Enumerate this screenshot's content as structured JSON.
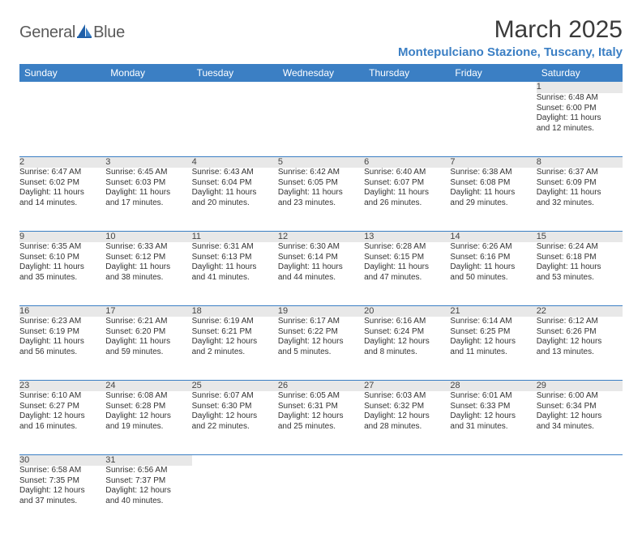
{
  "logo": {
    "part1": "General",
    "part2": "Blue"
  },
  "title": "March 2025",
  "location": "Montepulciano Stazione, Tuscany, Italy",
  "location_color": "#3b7fc4",
  "header_bg": "#3b7fc4",
  "daynum_bg": "#e8e8e8",
  "border_color": "#3b7fc4",
  "weekdays": [
    "Sunday",
    "Monday",
    "Tuesday",
    "Wednesday",
    "Thursday",
    "Friday",
    "Saturday"
  ],
  "first_weekday_index": 6,
  "days": [
    {
      "n": 1,
      "sunrise": "6:48 AM",
      "sunset": "6:00 PM",
      "dl_h": 11,
      "dl_m": 12
    },
    {
      "n": 2,
      "sunrise": "6:47 AM",
      "sunset": "6:02 PM",
      "dl_h": 11,
      "dl_m": 14
    },
    {
      "n": 3,
      "sunrise": "6:45 AM",
      "sunset": "6:03 PM",
      "dl_h": 11,
      "dl_m": 17
    },
    {
      "n": 4,
      "sunrise": "6:43 AM",
      "sunset": "6:04 PM",
      "dl_h": 11,
      "dl_m": 20
    },
    {
      "n": 5,
      "sunrise": "6:42 AM",
      "sunset": "6:05 PM",
      "dl_h": 11,
      "dl_m": 23
    },
    {
      "n": 6,
      "sunrise": "6:40 AM",
      "sunset": "6:07 PM",
      "dl_h": 11,
      "dl_m": 26
    },
    {
      "n": 7,
      "sunrise": "6:38 AM",
      "sunset": "6:08 PM",
      "dl_h": 11,
      "dl_m": 29
    },
    {
      "n": 8,
      "sunrise": "6:37 AM",
      "sunset": "6:09 PM",
      "dl_h": 11,
      "dl_m": 32
    },
    {
      "n": 9,
      "sunrise": "6:35 AM",
      "sunset": "6:10 PM",
      "dl_h": 11,
      "dl_m": 35
    },
    {
      "n": 10,
      "sunrise": "6:33 AM",
      "sunset": "6:12 PM",
      "dl_h": 11,
      "dl_m": 38
    },
    {
      "n": 11,
      "sunrise": "6:31 AM",
      "sunset": "6:13 PM",
      "dl_h": 11,
      "dl_m": 41
    },
    {
      "n": 12,
      "sunrise": "6:30 AM",
      "sunset": "6:14 PM",
      "dl_h": 11,
      "dl_m": 44
    },
    {
      "n": 13,
      "sunrise": "6:28 AM",
      "sunset": "6:15 PM",
      "dl_h": 11,
      "dl_m": 47
    },
    {
      "n": 14,
      "sunrise": "6:26 AM",
      "sunset": "6:16 PM",
      "dl_h": 11,
      "dl_m": 50
    },
    {
      "n": 15,
      "sunrise": "6:24 AM",
      "sunset": "6:18 PM",
      "dl_h": 11,
      "dl_m": 53
    },
    {
      "n": 16,
      "sunrise": "6:23 AM",
      "sunset": "6:19 PM",
      "dl_h": 11,
      "dl_m": 56
    },
    {
      "n": 17,
      "sunrise": "6:21 AM",
      "sunset": "6:20 PM",
      "dl_h": 11,
      "dl_m": 59
    },
    {
      "n": 18,
      "sunrise": "6:19 AM",
      "sunset": "6:21 PM",
      "dl_h": 12,
      "dl_m": 2
    },
    {
      "n": 19,
      "sunrise": "6:17 AM",
      "sunset": "6:22 PM",
      "dl_h": 12,
      "dl_m": 5
    },
    {
      "n": 20,
      "sunrise": "6:16 AM",
      "sunset": "6:24 PM",
      "dl_h": 12,
      "dl_m": 8
    },
    {
      "n": 21,
      "sunrise": "6:14 AM",
      "sunset": "6:25 PM",
      "dl_h": 12,
      "dl_m": 11
    },
    {
      "n": 22,
      "sunrise": "6:12 AM",
      "sunset": "6:26 PM",
      "dl_h": 12,
      "dl_m": 13
    },
    {
      "n": 23,
      "sunrise": "6:10 AM",
      "sunset": "6:27 PM",
      "dl_h": 12,
      "dl_m": 16
    },
    {
      "n": 24,
      "sunrise": "6:08 AM",
      "sunset": "6:28 PM",
      "dl_h": 12,
      "dl_m": 19
    },
    {
      "n": 25,
      "sunrise": "6:07 AM",
      "sunset": "6:30 PM",
      "dl_h": 12,
      "dl_m": 22
    },
    {
      "n": 26,
      "sunrise": "6:05 AM",
      "sunset": "6:31 PM",
      "dl_h": 12,
      "dl_m": 25
    },
    {
      "n": 27,
      "sunrise": "6:03 AM",
      "sunset": "6:32 PM",
      "dl_h": 12,
      "dl_m": 28
    },
    {
      "n": 28,
      "sunrise": "6:01 AM",
      "sunset": "6:33 PM",
      "dl_h": 12,
      "dl_m": 31
    },
    {
      "n": 29,
      "sunrise": "6:00 AM",
      "sunset": "6:34 PM",
      "dl_h": 12,
      "dl_m": 34
    },
    {
      "n": 30,
      "sunrise": "6:58 AM",
      "sunset": "7:35 PM",
      "dl_h": 12,
      "dl_m": 37
    },
    {
      "n": 31,
      "sunrise": "6:56 AM",
      "sunset": "7:37 PM",
      "dl_h": 12,
      "dl_m": 40
    }
  ],
  "labels": {
    "sunrise": "Sunrise:",
    "sunset": "Sunset:",
    "daylight_prefix": "Daylight:",
    "hours_word": "hours",
    "and_word": "and",
    "minutes_word": "minutes."
  }
}
